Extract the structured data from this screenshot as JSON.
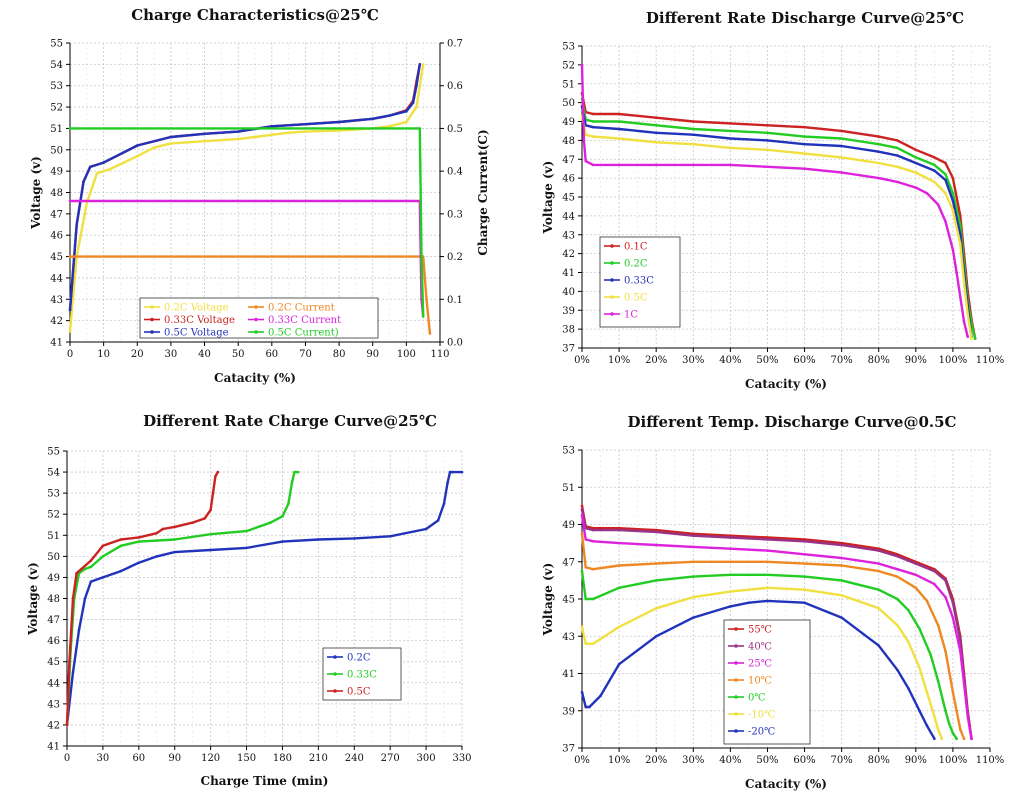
{
  "chart_data": [
    {
      "type": "line",
      "title": "Charge Characteristics@25℃",
      "xlabel": "Catacity (%)",
      "ylabel": "Voltage (v)",
      "y2label": "Charge Current(C)",
      "xlim": [
        0,
        110
      ],
      "ylim": [
        41,
        55
      ],
      "y2lim": [
        0,
        0.7
      ],
      "xticks": [
        "0",
        "10",
        "20",
        "30",
        "40",
        "50",
        "60",
        "70",
        "80",
        "90",
        "100",
        "110"
      ],
      "yticks": [
        "41",
        "42",
        "43",
        "44",
        "45",
        "46",
        "47",
        "48",
        "49",
        "50",
        "51",
        "52",
        "53",
        "54",
        "55"
      ],
      "y2ticks": [
        "0.0",
        "0.1",
        "0.2",
        "0.3",
        "0.4",
        "0.5",
        "0.6",
        "0.7"
      ],
      "grid": true,
      "legend_position": "bottom-center",
      "series": [
        {
          "name": "0.2C Voltage",
          "axis": "left",
          "color": "#f0e040",
          "x": [
            0,
            2,
            5,
            8,
            12,
            20,
            25,
            30,
            40,
            50,
            55,
            60,
            65,
            70,
            80,
            90,
            95,
            100,
            103,
            105
          ],
          "y": [
            41.5,
            45,
            47.5,
            48.9,
            49.1,
            49.7,
            50.1,
            50.3,
            50.4,
            50.5,
            50.6,
            50.7,
            50.8,
            50.85,
            50.9,
            51.0,
            51.1,
            51.3,
            52,
            54
          ]
        },
        {
          "name": "0.33C Voltage",
          "axis": "left",
          "color": "#cc2222",
          "x": [
            0,
            2,
            4,
            6,
            10,
            20,
            30,
            40,
            50,
            60,
            70,
            80,
            90,
            95,
            100,
            102,
            103,
            104
          ],
          "y": [
            42.5,
            46.5,
            48.5,
            49.2,
            49.4,
            50.2,
            50.6,
            50.75,
            50.85,
            51.1,
            51.2,
            51.3,
            51.45,
            51.6,
            51.85,
            52.3,
            53.2,
            54
          ]
        },
        {
          "name": "0.5C Voltage",
          "axis": "left",
          "color": "#2233bb",
          "x": [
            0,
            2,
            4,
            6,
            10,
            20,
            30,
            40,
            50,
            60,
            70,
            80,
            90,
            95,
            100,
            102,
            103,
            104
          ],
          "y": [
            42.5,
            46.5,
            48.5,
            49.2,
            49.4,
            50.2,
            50.6,
            50.75,
            50.85,
            51.1,
            51.2,
            51.3,
            51.45,
            51.6,
            51.8,
            52.2,
            53,
            54
          ]
        },
        {
          "name": "0.2C Current",
          "axis": "right",
          "color": "#ee8822",
          "x": [
            0,
            105,
            106,
            107
          ],
          "y": [
            0.2,
            0.2,
            0.1,
            0.02
          ]
        },
        {
          "name": "0.33C Current",
          "axis": "right",
          "color": "#dd22dd",
          "x": [
            0,
            104,
            104.5,
            105
          ],
          "y": [
            0.33,
            0.33,
            0.1,
            0.06
          ]
        },
        {
          "name": "0.5C Current)",
          "axis": "right",
          "color": "#22cc22",
          "x": [
            0,
            104,
            104.5,
            105
          ],
          "y": [
            0.5,
            0.5,
            0.2,
            0.06
          ]
        }
      ]
    },
    {
      "type": "line",
      "title": "Different Rate Discharge Curve@25℃",
      "xlabel": "Catacity (%)",
      "ylabel": "Voltage (v)",
      "xlim": [
        0,
        110
      ],
      "ylim": [
        37,
        53
      ],
      "xticks": [
        "0%",
        "10%",
        "20%",
        "30%",
        "40%",
        "50%",
        "60%",
        "70%",
        "80%",
        "90%",
        "100%",
        "110%"
      ],
      "yticks": [
        "37",
        "38",
        "39",
        "40",
        "41",
        "42",
        "43",
        "44",
        "45",
        "46",
        "47",
        "48",
        "49",
        "50",
        "51",
        "52",
        "53"
      ],
      "grid": true,
      "legend_position": "bottom-left",
      "series": [
        {
          "name": "0.1C",
          "color": "#cc2222",
          "x": [
            0,
            1,
            3,
            10,
            20,
            30,
            40,
            50,
            60,
            70,
            80,
            85,
            90,
            95,
            98,
            100,
            102,
            103,
            104,
            105,
            106
          ],
          "y": [
            50.5,
            49.5,
            49.4,
            49.4,
            49.2,
            49.0,
            48.9,
            48.8,
            48.7,
            48.5,
            48.2,
            48.0,
            47.5,
            47.1,
            46.8,
            46.0,
            44.0,
            42.0,
            40.0,
            38.5,
            37.5
          ]
        },
        {
          "name": "0.2C",
          "color": "#22cc22",
          "x": [
            0,
            1,
            3,
            10,
            20,
            30,
            40,
            50,
            60,
            70,
            80,
            85,
            90,
            95,
            98,
            100,
            102,
            103,
            104,
            105,
            106
          ],
          "y": [
            50.2,
            49.1,
            49.0,
            49.0,
            48.8,
            48.6,
            48.5,
            48.4,
            48.2,
            48.1,
            47.8,
            47.6,
            47.1,
            46.7,
            46.2,
            45.2,
            43.5,
            41.5,
            39.5,
            38.3,
            37.5
          ]
        },
        {
          "name": "0.33C",
          "color": "#2233bb",
          "x": [
            0,
            1,
            3,
            10,
            20,
            30,
            40,
            50,
            60,
            70,
            80,
            85,
            90,
            95,
            98,
            100,
            102,
            103,
            104,
            105
          ],
          "y": [
            49.8,
            48.8,
            48.7,
            48.6,
            48.4,
            48.3,
            48.1,
            48.0,
            47.8,
            47.7,
            47.4,
            47.2,
            46.8,
            46.4,
            45.9,
            44.8,
            43.0,
            41.0,
            39.2,
            37.6
          ]
        },
        {
          "name": "0.5C",
          "color": "#f0e040",
          "x": [
            0,
            1,
            3,
            10,
            20,
            30,
            40,
            50,
            60,
            70,
            80,
            85,
            90,
            95,
            98,
            100,
            102,
            103,
            104,
            105
          ],
          "y": [
            49.3,
            48.3,
            48.2,
            48.1,
            47.9,
            47.8,
            47.6,
            47.5,
            47.3,
            47.1,
            46.8,
            46.6,
            46.3,
            45.8,
            45.2,
            44.3,
            42.5,
            40.5,
            38.8,
            37.5
          ]
        },
        {
          "name": "1C",
          "color": "#dd22dd",
          "x": [
            0,
            0.5,
            1,
            3,
            10,
            20,
            30,
            40,
            50,
            60,
            70,
            80,
            85,
            90,
            93,
            96,
            98,
            100,
            101,
            102,
            103,
            104
          ],
          "y": [
            52,
            48,
            46.9,
            46.7,
            46.7,
            46.7,
            46.7,
            46.7,
            46.6,
            46.5,
            46.3,
            46.0,
            45.8,
            45.5,
            45.2,
            44.6,
            43.7,
            42.2,
            41.0,
            39.7,
            38.4,
            37.6
          ]
        }
      ]
    },
    {
      "type": "line",
      "title": "Different Rate Charge Curve@25℃",
      "xlabel": "Charge Time (min)",
      "ylabel": "Voltage (v)",
      "xlim": [
        0,
        330
      ],
      "ylim": [
        41,
        55
      ],
      "xticks": [
        "0",
        "30",
        "60",
        "90",
        "120",
        "150",
        "180",
        "210",
        "240",
        "270",
        "300",
        "330"
      ],
      "yticks": [
        "41",
        "42",
        "43",
        "44",
        "45",
        "46",
        "47",
        "48",
        "49",
        "50",
        "51",
        "52",
        "53",
        "54",
        "55"
      ],
      "grid": true,
      "legend_position": "center-right",
      "series": [
        {
          "name": "0.2C",
          "color": "#2233bb",
          "x": [
            0,
            5,
            10,
            15,
            20,
            30,
            45,
            60,
            75,
            90,
            120,
            150,
            180,
            210,
            240,
            270,
            300,
            310,
            315,
            318,
            320,
            322,
            330
          ],
          "y": [
            42,
            44.5,
            46.5,
            48,
            48.8,
            49,
            49.3,
            49.7,
            50,
            50.2,
            50.3,
            50.4,
            50.7,
            50.8,
            50.85,
            50.95,
            51.3,
            51.7,
            52.5,
            53.5,
            54,
            54,
            54
          ]
        },
        {
          "name": "0.33C",
          "color": "#22cc22",
          "x": [
            0,
            3,
            6,
            10,
            15,
            20,
            30,
            45,
            60,
            75,
            90,
            120,
            150,
            170,
            180,
            185,
            188,
            190,
            193
          ],
          "y": [
            42,
            45.5,
            48,
            49.2,
            49.4,
            49.5,
            50,
            50.5,
            50.7,
            50.75,
            50.8,
            51.05,
            51.2,
            51.6,
            51.9,
            52.5,
            53.5,
            54,
            54
          ]
        },
        {
          "name": "0.5C",
          "color": "#cc2222",
          "x": [
            0,
            2,
            5,
            8,
            12,
            20,
            30,
            45,
            60,
            75,
            80,
            90,
            105,
            115,
            120,
            122,
            124,
            126
          ],
          "y": [
            42,
            45,
            48,
            49.2,
            49.4,
            49.8,
            50.5,
            50.8,
            50.9,
            51.1,
            51.3,
            51.4,
            51.6,
            51.8,
            52.2,
            53,
            53.8,
            54
          ]
        }
      ]
    },
    {
      "type": "line",
      "title": "Different Temp. Discharge Curve@0.5C",
      "xlabel": "Catacity (%)",
      "ylabel": "Voltage (v)",
      "xlim": [
        0,
        110
      ],
      "ylim": [
        37,
        53
      ],
      "xticks": [
        "0%",
        "10%",
        "20%",
        "30%",
        "40%",
        "50%",
        "60%",
        "70%",
        "80%",
        "90%",
        "100%",
        "110%"
      ],
      "yticks": [
        "37",
        "39",
        "41",
        "43",
        "45",
        "47",
        "49",
        "51",
        "53"
      ],
      "grid": true,
      "legend_position": "bottom-center",
      "series": [
        {
          "name": "55℃",
          "color": "#cc2222",
          "x": [
            0,
            1,
            3,
            10,
            20,
            30,
            40,
            50,
            60,
            70,
            80,
            85,
            90,
            95,
            98,
            100,
            102,
            103,
            104,
            105
          ],
          "y": [
            50,
            48.9,
            48.8,
            48.8,
            48.7,
            48.5,
            48.4,
            48.3,
            48.2,
            48.0,
            47.7,
            47.4,
            47.0,
            46.6,
            46.1,
            45.0,
            43.0,
            41.0,
            39.0,
            37.5
          ]
        },
        {
          "name": "40℃",
          "color": "#993388",
          "x": [
            0,
            1,
            3,
            10,
            20,
            30,
            40,
            50,
            60,
            70,
            80,
            85,
            90,
            95,
            98,
            100,
            102,
            103,
            104,
            105
          ],
          "y": [
            49.8,
            48.8,
            48.7,
            48.7,
            48.6,
            48.4,
            48.3,
            48.2,
            48.1,
            47.9,
            47.6,
            47.3,
            46.9,
            46.5,
            46.0,
            44.8,
            42.8,
            40.8,
            38.8,
            37.5
          ]
        },
        {
          "name": "25℃",
          "color": "#dd22dd",
          "x": [
            0,
            1,
            3,
            10,
            20,
            30,
            40,
            50,
            60,
            70,
            80,
            85,
            90,
            95,
            98,
            100,
            102,
            103,
            104,
            105
          ],
          "y": [
            49.5,
            48.2,
            48.1,
            48.0,
            47.9,
            47.8,
            47.7,
            47.6,
            47.4,
            47.2,
            46.9,
            46.6,
            46.3,
            45.8,
            45.1,
            44.0,
            42.2,
            40.5,
            38.7,
            37.5
          ]
        },
        {
          "name": "10℃",
          "color": "#ee8822",
          "x": [
            0,
            1,
            3,
            10,
            20,
            30,
            40,
            50,
            60,
            70,
            80,
            85,
            90,
            93,
            96,
            98,
            100,
            101,
            102,
            103
          ],
          "y": [
            48.5,
            46.7,
            46.6,
            46.8,
            46.9,
            47.0,
            47.0,
            47.0,
            46.9,
            46.8,
            46.5,
            46.2,
            45.6,
            44.9,
            43.6,
            42.2,
            40.0,
            39.0,
            38.0,
            37.5
          ]
        },
        {
          "name": "0℃",
          "color": "#22cc22",
          "x": [
            0,
            1,
            3,
            10,
            20,
            30,
            40,
            50,
            60,
            70,
            80,
            85,
            88,
            91,
            94,
            96,
            98,
            99,
            100,
            101
          ],
          "y": [
            46.5,
            45.0,
            45.0,
            45.6,
            46.0,
            46.2,
            46.3,
            46.3,
            46.2,
            46.0,
            45.5,
            45.0,
            44.4,
            43.4,
            42.0,
            40.6,
            39.0,
            38.3,
            37.8,
            37.5
          ]
        },
        {
          "name": "-10℃",
          "color": "#f0e040",
          "x": [
            0,
            1,
            3,
            10,
            20,
            30,
            40,
            50,
            60,
            70,
            80,
            85,
            88,
            91,
            93,
            95,
            96,
            97
          ],
          "y": [
            43.5,
            42.6,
            42.6,
            43.5,
            44.5,
            45.1,
            45.4,
            45.6,
            45.5,
            45.2,
            44.5,
            43.6,
            42.7,
            41.3,
            40.0,
            38.7,
            38.0,
            37.5
          ]
        },
        {
          "name": "-20℃",
          "color": "#2233bb",
          "x": [
            0,
            1,
            2,
            5,
            10,
            20,
            30,
            40,
            45,
            50,
            60,
            70,
            80,
            85,
            88,
            91,
            93,
            95
          ],
          "y": [
            40.0,
            39.2,
            39.2,
            39.8,
            41.5,
            43.0,
            44.0,
            44.6,
            44.8,
            44.9,
            44.8,
            44.0,
            42.5,
            41.2,
            40.2,
            39.0,
            38.2,
            37.5
          ]
        }
      ]
    }
  ]
}
